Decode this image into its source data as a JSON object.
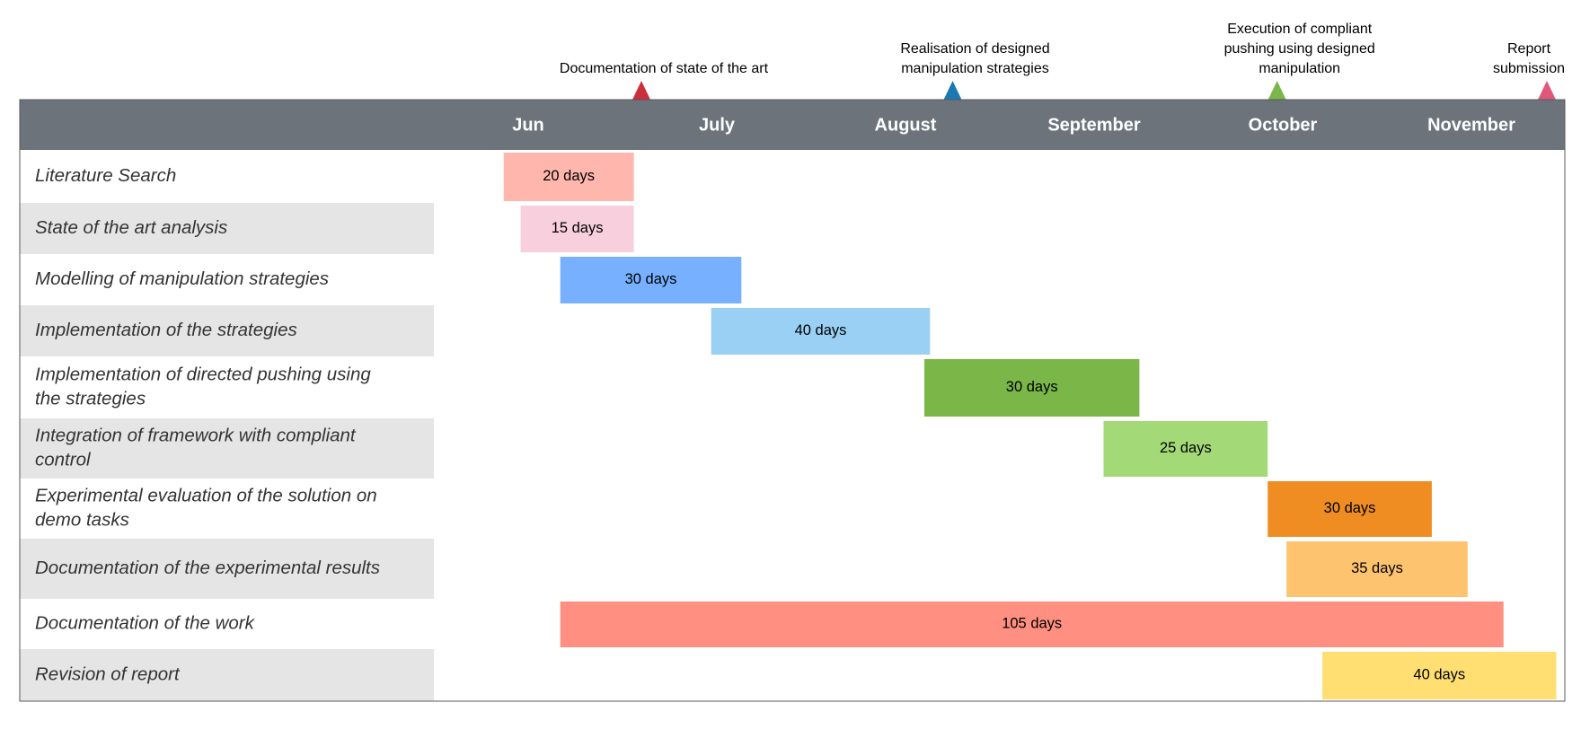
{
  "chart_data": {
    "type": "gantt",
    "months": [
      "Jun",
      "July",
      "August",
      "September",
      "October",
      "November"
    ],
    "milestones": [
      {
        "lines": [
          "Documentation of state of the art"
        ],
        "color": "#cc2e3b",
        "month_index": 0.6
      },
      {
        "lines": [
          "Realisation of designed",
          "manipulation strategies"
        ],
        "color": "#1a78b4",
        "month_index": 2.25
      },
      {
        "lines": [
          "Execution of compliant",
          "pushing using designed",
          "manipulation"
        ],
        "color": "#7ab648",
        "month_index": 3.97
      },
      {
        "lines": [
          "Report",
          "submission"
        ],
        "color": "#e0577a",
        "month_index": 5.4
      }
    ],
    "tasks": [
      {
        "lines": [
          "Literature Search"
        ],
        "duration": "20 days",
        "start": -0.13,
        "end": 0.56,
        "color": "#ffb6ad"
      },
      {
        "lines": [
          "State of the art analysis"
        ],
        "duration": "15 days",
        "start": -0.04,
        "end": 0.56,
        "color": "#f8cfdc"
      },
      {
        "lines": [
          "Modelling of manipulation strategies"
        ],
        "duration": "30 days",
        "start": 0.17,
        "end": 1.13,
        "color": "#76b0ff"
      },
      {
        "lines": [
          "Implementation of the strategies"
        ],
        "duration": "40 days",
        "start": 0.97,
        "end": 2.13,
        "color": "#99d0f4"
      },
      {
        "lines": [
          "Implementation of directed pushing using",
          "the strategies"
        ],
        "duration": "30 days",
        "start": 2.1,
        "end": 3.24,
        "color": "#7ab648"
      },
      {
        "lines": [
          "Integration of framework with compliant",
          "control"
        ],
        "duration": "25 days",
        "start": 3.05,
        "end": 3.92,
        "color": "#a3d977"
      },
      {
        "lines": [
          "Experimental evaluation of the solution on",
          "demo tasks"
        ],
        "duration": "30 days",
        "start": 3.92,
        "end": 4.79,
        "color": "#ef8d22"
      },
      {
        "lines": [
          "Documentation of the experimental results"
        ],
        "duration": "35 days",
        "start": 4.02,
        "end": 4.98,
        "color": "#fdc36f"
      },
      {
        "lines": [
          "Documentation of the work"
        ],
        "duration": "105 days",
        "start": 0.17,
        "end": 5.17,
        "color": "#ff8f80"
      },
      {
        "lines": [
          "Revision of report"
        ],
        "duration": "40 days",
        "start": 4.21,
        "end": 5.45,
        "color": "#ffdf71"
      }
    ],
    "colors": {
      "header": "#6d737b",
      "stripe": "#e5e5e5",
      "border": "#58595b"
    }
  }
}
